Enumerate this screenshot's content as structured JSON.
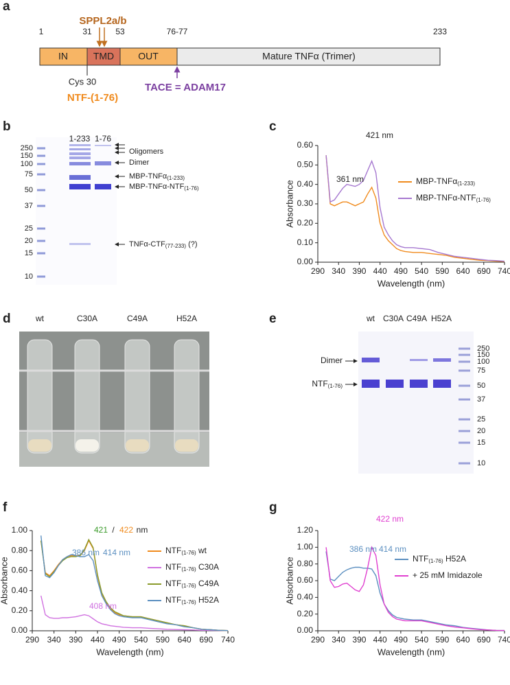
{
  "figure": {
    "panel_a": {
      "label": "a",
      "positions": [
        "1",
        "31",
        "53",
        "76-77",
        "233"
      ],
      "segments": [
        "IN",
        "TMD",
        "OUT",
        "Mature TNFα (Trimer)"
      ],
      "protease_top": "SPPL2a/b",
      "cys": "Cys 30",
      "ntf": "NTF-(1-76)",
      "tace": "TACE = ADAM17"
    },
    "panel_b": {
      "label": "b",
      "lanes": [
        "1-233",
        "1-76"
      ],
      "ladder": [
        "250",
        "150",
        "100",
        "75",
        "50",
        "37",
        "25",
        "20",
        "15",
        "10"
      ],
      "annotations": [
        "Oligomers",
        "Dimer",
        "MBP-TNFα(1-233)",
        "MBP-TNFα-NTF(1-76)",
        "TNFα-CTF(77-233) (?)"
      ]
    },
    "panel_d": {
      "label": "d",
      "lanes": [
        "wt",
        "C30A",
        "C49A",
        "H52A"
      ]
    },
    "panel_e": {
      "label": "e",
      "lanes": [
        "wt",
        "C30A",
        "C49A",
        "H52A"
      ],
      "bands": [
        "Dimer",
        "NTF(1-76)"
      ],
      "ladder": [
        "250",
        "150",
        "100",
        "75",
        "50",
        "37",
        "25",
        "20",
        "15",
        "10"
      ]
    }
  },
  "chart_data": [
    {
      "type": "line",
      "panel_label": "c",
      "x_label": "Wavelength (nm)",
      "y_label": "Absorbance",
      "x": [
        310,
        320,
        330,
        340,
        350,
        360,
        370,
        380,
        390,
        400,
        410,
        420,
        430,
        440,
        450,
        460,
        470,
        480,
        490,
        500,
        520,
        540,
        560,
        580,
        600,
        620,
        640,
        660,
        680,
        700,
        720,
        740
      ],
      "xlim": [
        290,
        740
      ],
      "xticks": [
        290,
        340,
        390,
        440,
        490,
        540,
        590,
        640,
        690,
        740
      ],
      "ylim": [
        0,
        0.6
      ],
      "yticks": [
        {
          "value": 0,
          "label": "0.00"
        },
        {
          "value": 0.1,
          "label": "0.10"
        },
        {
          "value": 0.2,
          "label": "0.20"
        },
        {
          "value": 0.3,
          "label": "0.30"
        },
        {
          "value": 0.4,
          "label": "0.40"
        },
        {
          "value": 0.5,
          "label": "0.50"
        },
        {
          "value": 0.6,
          "label": "0.60"
        }
      ],
      "series": [
        {
          "name": "MBP-TNFα(1-233)",
          "color": "#f08a1c",
          "values": [
            0.55,
            0.3,
            0.29,
            0.3,
            0.31,
            0.31,
            0.3,
            0.29,
            0.3,
            0.31,
            0.35,
            0.385,
            0.33,
            0.2,
            0.14,
            0.11,
            0.09,
            0.07,
            0.06,
            0.055,
            0.05,
            0.05,
            0.045,
            0.04,
            0.035,
            0.025,
            0.02,
            0.015,
            0.01,
            0.008,
            0.005,
            0.003
          ]
        },
        {
          "name": "MBP-TNFα-NTF(1-76)",
          "color": "#a678d0",
          "values": [
            0.55,
            0.31,
            0.32,
            0.35,
            0.38,
            0.4,
            0.395,
            0.39,
            0.4,
            0.42,
            0.47,
            0.52,
            0.46,
            0.28,
            0.18,
            0.14,
            0.11,
            0.09,
            0.08,
            0.075,
            0.075,
            0.07,
            0.065,
            0.05,
            0.04,
            0.03,
            0.025,
            0.02,
            0.015,
            0.01,
            0.008,
            0.005
          ]
        }
      ],
      "annotations": [
        {
          "text": "421 nm",
          "color": "#222222"
        },
        {
          "text": "361 nm",
          "color": "#222222"
        }
      ]
    },
    {
      "type": "line",
      "panel_label": "f",
      "x_label": "Wavelength (nm)",
      "y_label": "Absorbance",
      "x": [
        310,
        320,
        330,
        340,
        350,
        360,
        370,
        380,
        390,
        400,
        410,
        420,
        430,
        440,
        450,
        460,
        470,
        480,
        490,
        500,
        520,
        540,
        560,
        580,
        600,
        620,
        640,
        660,
        680,
        700,
        720,
        740
      ],
      "xlim": [
        290,
        740
      ],
      "xticks": [
        290,
        340,
        390,
        440,
        490,
        540,
        590,
        640,
        690,
        740
      ],
      "ylim": [
        0,
        1
      ],
      "yticks": [
        {
          "value": 0,
          "label": "0.00"
        },
        {
          "value": 0.2,
          "label": "0.20"
        },
        {
          "value": 0.4,
          "label": "0.40"
        },
        {
          "value": 0.6,
          "label": "0.60"
        },
        {
          "value": 0.8,
          "label": "0.80"
        },
        {
          "value": 1,
          "label": "1.00"
        }
      ],
      "series": [
        {
          "name": "NTF(1-76) wt",
          "color": "#f08a1c",
          "values": [
            0.9,
            0.58,
            0.55,
            0.6,
            0.66,
            0.71,
            0.74,
            0.75,
            0.75,
            0.75,
            0.8,
            0.9,
            0.82,
            0.55,
            0.37,
            0.28,
            0.22,
            0.18,
            0.16,
            0.15,
            0.14,
            0.14,
            0.12,
            0.1,
            0.08,
            0.06,
            0.05,
            0.03,
            0.015,
            0.01,
            0.005,
            0.002
          ]
        },
        {
          "name": "NTF(1-76) C30A",
          "color": "#d070e0",
          "values": [
            0.35,
            0.16,
            0.13,
            0.125,
            0.125,
            0.13,
            0.13,
            0.135,
            0.14,
            0.15,
            0.16,
            0.15,
            0.12,
            0.09,
            0.07,
            0.06,
            0.05,
            0.045,
            0.04,
            0.035,
            0.03,
            0.03,
            0.025,
            0.02,
            0.015,
            0.012,
            0.01,
            0.008,
            0.005,
            0.004,
            0.003,
            0.002
          ]
        },
        {
          "name": "NTF(1-76) C49A",
          "color": "#8a9a2a",
          "values": [
            0.9,
            0.57,
            0.54,
            0.59,
            0.65,
            0.7,
            0.73,
            0.74,
            0.74,
            0.75,
            0.81,
            0.91,
            0.83,
            0.56,
            0.38,
            0.29,
            0.23,
            0.19,
            0.17,
            0.15,
            0.14,
            0.14,
            0.12,
            0.1,
            0.08,
            0.06,
            0.05,
            0.03,
            0.015,
            0.01,
            0.005,
            0.002
          ]
        },
        {
          "name": "NTF(1-76) H52A",
          "color": "#5b8fc0",
          "values": [
            0.95,
            0.55,
            0.53,
            0.58,
            0.65,
            0.71,
            0.74,
            0.76,
            0.75,
            0.74,
            0.74,
            0.76,
            0.7,
            0.5,
            0.35,
            0.27,
            0.21,
            0.17,
            0.15,
            0.14,
            0.13,
            0.13,
            0.11,
            0.09,
            0.07,
            0.06,
            0.04,
            0.03,
            0.015,
            0.01,
            0.005,
            0.002
          ]
        }
      ],
      "annotations": [
        {
          "text": "421",
          "color": "#3a9a2a"
        },
        {
          "text": "/",
          "color": "#222222"
        },
        {
          "text": "422",
          "color": "#f08a1c"
        },
        {
          "text": "nm",
          "color": "#222222"
        },
        {
          "text": "386 nm",
          "color": "#5b8fc0"
        },
        {
          "text": "414 nm",
          "color": "#5b8fc0"
        },
        {
          "text": "408 nm",
          "color": "#d070e0"
        }
      ]
    },
    {
      "type": "line",
      "panel_label": "g",
      "x_label": "Wavelength (nm)",
      "y_label": "Absorbance",
      "x": [
        310,
        320,
        330,
        340,
        350,
        360,
        370,
        380,
        390,
        400,
        410,
        420,
        430,
        440,
        450,
        460,
        470,
        480,
        490,
        500,
        520,
        540,
        560,
        580,
        600,
        620,
        640,
        660,
        680,
        700,
        720,
        740
      ],
      "xlim": [
        290,
        740
      ],
      "xticks": [
        290,
        340,
        390,
        440,
        490,
        540,
        590,
        640,
        690,
        740
      ],
      "ylim": [
        0,
        1.2
      ],
      "yticks": [
        {
          "value": 0,
          "label": "0.00"
        },
        {
          "value": 0.2,
          "label": "0.20"
        },
        {
          "value": 0.4,
          "label": "0.40"
        },
        {
          "value": 0.6,
          "label": "0.60"
        },
        {
          "value": 0.8,
          "label": "0.80"
        },
        {
          "value": 1,
          "label": "1.00"
        },
        {
          "value": 1.2,
          "label": "1.20"
        }
      ],
      "series": [
        {
          "name": "NTF(1-76) H52A",
          "color": "#5b8fc0",
          "values": [
            0.95,
            0.62,
            0.6,
            0.65,
            0.7,
            0.73,
            0.75,
            0.76,
            0.76,
            0.75,
            0.75,
            0.74,
            0.66,
            0.45,
            0.32,
            0.24,
            0.19,
            0.16,
            0.15,
            0.14,
            0.13,
            0.13,
            0.11,
            0.09,
            0.07,
            0.06,
            0.04,
            0.03,
            0.02,
            0.01,
            0.005,
            0.003
          ]
        },
        {
          "name": "+ 25 mM Imidazole",
          "color": "#e040d0",
          "values": [
            1.0,
            0.6,
            0.52,
            0.53,
            0.56,
            0.57,
            0.53,
            0.49,
            0.47,
            0.55,
            0.75,
            1.0,
            0.9,
            0.55,
            0.32,
            0.22,
            0.17,
            0.14,
            0.13,
            0.12,
            0.12,
            0.12,
            0.1,
            0.08,
            0.06,
            0.045,
            0.035,
            0.025,
            0.015,
            0.01,
            0.005,
            0.003
          ]
        }
      ],
      "annotations": [
        {
          "text": "422 nm",
          "color": "#e040d0"
        },
        {
          "text": "386 nm",
          "color": "#5b8fc0"
        },
        {
          "text": "414 nm",
          "color": "#5b8fc0"
        }
      ]
    }
  ]
}
